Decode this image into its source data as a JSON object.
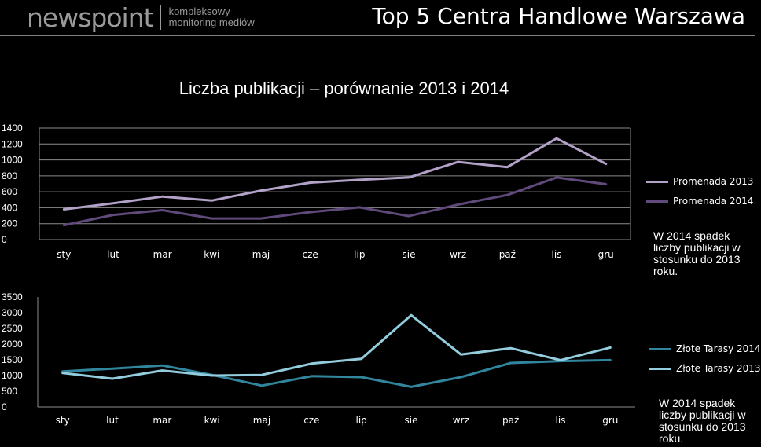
{
  "header": {
    "logo_main": "newspoint",
    "logo_tag_line1": "kompleksowy",
    "logo_tag_line2": "monitoring mediów",
    "title": "Top 5 Centra Handlowe Warszawa"
  },
  "chart_title": "Liczba publikacji – porównanie 2013 i 2014",
  "notes": {
    "promenada": "W 2014 spadek liczby publikacji w stosunku do 2013 roku.",
    "zlote_tarasy": "W 2014 spadek liczby publikacji w stosunku do 2013 roku."
  },
  "chart_data": [
    {
      "type": "line",
      "title": "",
      "categories": [
        "sty",
        "lut",
        "mar",
        "kwi",
        "maj",
        "cze",
        "lip",
        "sie",
        "wrz",
        "paź",
        "lis",
        "gru"
      ],
      "ylim": [
        0,
        1400
      ],
      "yticks": [
        "0",
        "200",
        "400",
        "600",
        "800",
        "1000",
        "1200",
        "1400"
      ],
      "grid": true,
      "legend_position": "right",
      "series": [
        {
          "name": "Promenada 2013",
          "color": "#b3a2c7",
          "values": [
            380,
            455,
            540,
            490,
            615,
            715,
            750,
            780,
            975,
            910,
            1270,
            950
          ]
        },
        {
          "name": "Promenada 2014",
          "color": "#604a7b",
          "values": [
            180,
            310,
            370,
            265,
            265,
            345,
            405,
            295,
            440,
            560,
            780,
            695
          ]
        }
      ]
    },
    {
      "type": "line",
      "title": "",
      "categories": [
        "sty",
        "lut",
        "mar",
        "kwi",
        "maj",
        "cze",
        "lip",
        "sie",
        "wrz",
        "paź",
        "lis",
        "gru"
      ],
      "ylim": [
        0,
        3500
      ],
      "yticks": [
        "0",
        "500",
        "1000",
        "1500",
        "2000",
        "2500",
        "3000",
        "3500"
      ],
      "grid": false,
      "legend_position": "right",
      "series": [
        {
          "name": "Złote Tarasy 2014",
          "color": "#31859c",
          "values": [
            1130,
            1220,
            1320,
            1020,
            680,
            980,
            950,
            640,
            950,
            1400,
            1460,
            1490
          ]
        },
        {
          "name": "Złote Tarasy 2013",
          "color": "#93cddd",
          "values": [
            1080,
            900,
            1160,
            1000,
            1020,
            1380,
            1530,
            2920,
            1670,
            1870,
            1490,
            1890
          ]
        }
      ]
    }
  ]
}
